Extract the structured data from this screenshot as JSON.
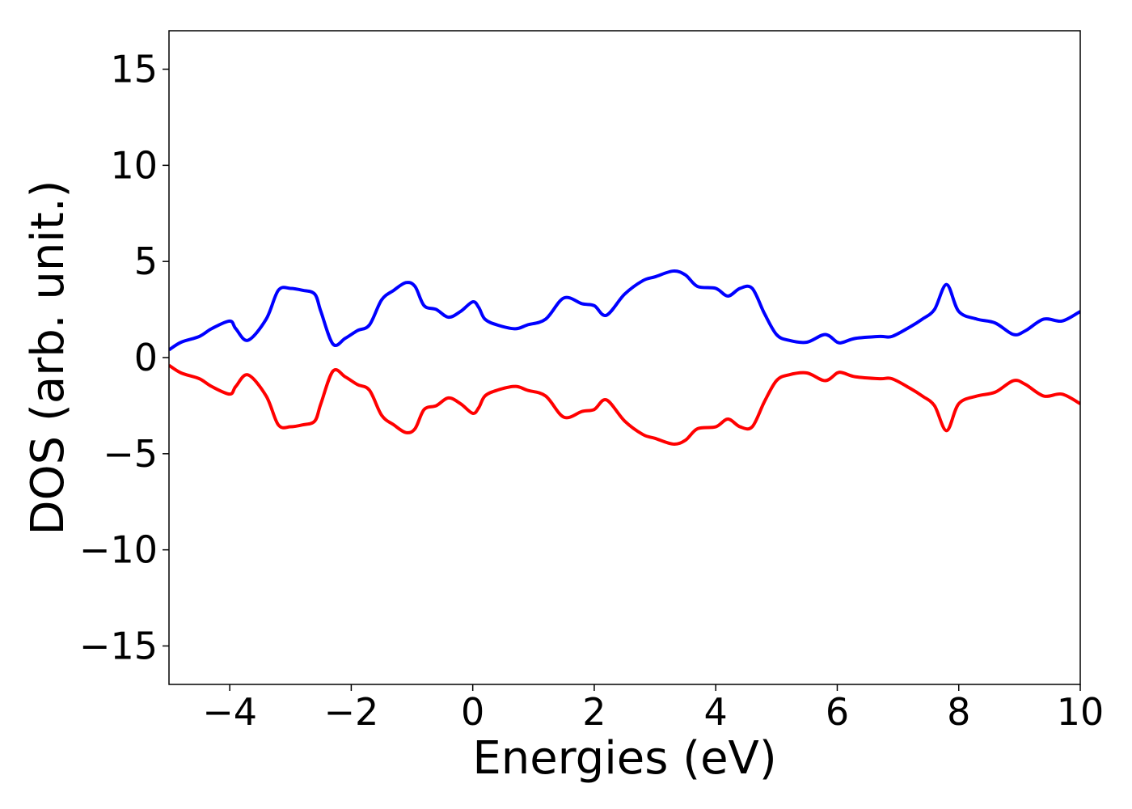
{
  "chart_data": {
    "type": "line",
    "title": "",
    "xlabel": "Energies (eV)",
    "ylabel": "DOS (arb. unit.)",
    "xlim": [
      -5,
      10
    ],
    "ylim": [
      -17,
      17
    ],
    "grid": false,
    "legend": "none",
    "x_ticks": [
      -4,
      -2,
      0,
      2,
      4,
      6,
      8,
      10
    ],
    "x_tick_labels": [
      "−4",
      "−2",
      "0",
      "2",
      "4",
      "6",
      "8",
      "10"
    ],
    "y_ticks": [
      15,
      10,
      5,
      0,
      -5,
      -10,
      -15
    ],
    "y_tick_labels": [
      "15",
      "10",
      "5",
      "0",
      "−5",
      "−10",
      "−15"
    ],
    "series": [
      {
        "color": "#0000ff",
        "x": [
          -5.0,
          -4.8,
          -4.5,
          -4.3,
          -4.0,
          -3.9,
          -3.7,
          -3.4,
          -3.2,
          -3.0,
          -2.8,
          -2.6,
          -2.5,
          -2.3,
          -2.1,
          -1.9,
          -1.7,
          -1.5,
          -1.3,
          -1.1,
          -0.95,
          -0.8,
          -0.6,
          -0.4,
          -0.2,
          0.0,
          0.1,
          0.2,
          0.4,
          0.7,
          0.9,
          1.2,
          1.5,
          1.8,
          2.0,
          2.2,
          2.5,
          2.8,
          3.0,
          3.3,
          3.5,
          3.7,
          4.0,
          4.2,
          4.4,
          4.6,
          4.8,
          5.0,
          5.2,
          5.5,
          5.8,
          6.0,
          6.1,
          6.3,
          6.7,
          6.9,
          7.2,
          7.4,
          7.6,
          7.8,
          8.0,
          8.3,
          8.6,
          8.9,
          9.1,
          9.4,
          9.7,
          10.0
        ],
        "y": [
          0.4,
          0.8,
          1.1,
          1.5,
          1.9,
          1.5,
          0.9,
          2.0,
          3.5,
          3.6,
          3.5,
          3.3,
          2.4,
          0.7,
          1.0,
          1.4,
          1.7,
          3.0,
          3.5,
          3.9,
          3.7,
          2.7,
          2.5,
          2.1,
          2.4,
          2.9,
          2.6,
          2.0,
          1.7,
          1.5,
          1.7,
          2.0,
          3.1,
          2.8,
          2.7,
          2.2,
          3.3,
          4.0,
          4.2,
          4.5,
          4.3,
          3.7,
          3.6,
          3.2,
          3.6,
          3.6,
          2.3,
          1.2,
          0.9,
          0.8,
          1.2,
          0.8,
          0.8,
          1.0,
          1.1,
          1.1,
          1.6,
          2.0,
          2.5,
          3.8,
          2.4,
          2.0,
          1.8,
          1.2,
          1.4,
          2.0,
          1.9,
          2.4
        ]
      },
      {
        "color": "#ff0000",
        "x": [
          -5.0,
          -4.8,
          -4.5,
          -4.3,
          -4.0,
          -3.9,
          -3.7,
          -3.4,
          -3.2,
          -3.0,
          -2.8,
          -2.6,
          -2.5,
          -2.3,
          -2.1,
          -1.9,
          -1.7,
          -1.5,
          -1.3,
          -1.1,
          -0.95,
          -0.8,
          -0.6,
          -0.4,
          -0.2,
          0.0,
          0.1,
          0.2,
          0.4,
          0.7,
          0.9,
          1.2,
          1.5,
          1.8,
          2.0,
          2.2,
          2.5,
          2.8,
          3.0,
          3.3,
          3.5,
          3.7,
          4.0,
          4.2,
          4.4,
          4.6,
          4.8,
          5.0,
          5.2,
          5.5,
          5.8,
          6.0,
          6.1,
          6.3,
          6.7,
          6.9,
          7.2,
          7.4,
          7.6,
          7.8,
          8.0,
          8.3,
          8.6,
          8.9,
          9.1,
          9.4,
          9.7,
          10.0
        ],
        "y": [
          -0.4,
          -0.8,
          -1.1,
          -1.5,
          -1.9,
          -1.5,
          -0.9,
          -2.0,
          -3.5,
          -3.6,
          -3.5,
          -3.3,
          -2.4,
          -0.7,
          -1.0,
          -1.4,
          -1.7,
          -3.0,
          -3.5,
          -3.9,
          -3.7,
          -2.7,
          -2.5,
          -2.1,
          -2.4,
          -2.9,
          -2.6,
          -2.0,
          -1.7,
          -1.5,
          -1.7,
          -2.0,
          -3.1,
          -2.8,
          -2.7,
          -2.2,
          -3.3,
          -4.0,
          -4.2,
          -4.5,
          -4.3,
          -3.7,
          -3.6,
          -3.2,
          -3.6,
          -3.6,
          -2.3,
          -1.2,
          -0.9,
          -0.8,
          -1.2,
          -0.8,
          -0.8,
          -1.0,
          -1.1,
          -1.1,
          -1.6,
          -2.0,
          -2.5,
          -3.8,
          -2.4,
          -2.0,
          -1.8,
          -1.2,
          -1.4,
          -2.0,
          -1.9,
          -2.4
        ]
      }
    ]
  }
}
